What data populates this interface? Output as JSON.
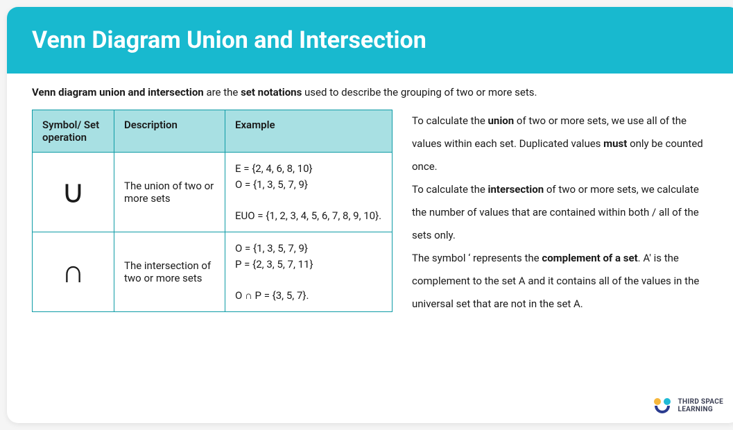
{
  "colors": {
    "header_bg": "#18b9cf",
    "table_border": "#0d9ba5",
    "th_bg": "#a8e0e3",
    "text": "#1a1a1a",
    "card_bg": "#ffffff"
  },
  "typography": {
    "title_fontsize": 34,
    "body_fontsize": 15,
    "symbol_fontsize": 46,
    "side_line_height": 2.2
  },
  "header": {
    "title": "Venn Diagram Union and Intersection"
  },
  "intro": {
    "prefix_bold": "Venn diagram union and intersection",
    "mid_plain": " are the ",
    "mid_bold": "set notations",
    "suffix_plain": " used to describe the grouping of two or more sets."
  },
  "table": {
    "columns": [
      "Symbol/ Set operation",
      "Description",
      "Example"
    ],
    "rows": [
      {
        "symbol": "∪",
        "description": "The union of two or more sets",
        "example": "E = {2, 4, 6, 8, 10}\nO = {1, 3, 5, 7, 9}\n\nEUO = {1, 2, 3, 4, 5, 6, 7, 8, 9, 10}."
      },
      {
        "symbol": "∩",
        "description": "The intersection of two or more sets",
        "example": "O = {1, 3, 5, 7, 9}\nP = {2, 3, 5, 7, 11}\n\nO ∩ P = {3, 5, 7}."
      }
    ]
  },
  "side": {
    "p1_a": "To calculate the ",
    "p1_bold1": "union",
    "p1_b": " of two or more sets, we use all of the values within each set. Duplicated values ",
    "p1_bold2": "must",
    "p1_c": " only be counted once.",
    "p2_a": "To calculate the ",
    "p2_bold": "intersection",
    "p2_b": " of two or more sets, we calculate the number of values that are contained within both / all of the sets only.",
    "p3_a": "The symbol ‘ represents the ",
    "p3_bold": "complement of a set",
    "p3_b": ". A' is the complement to the set A and it contains all of the values in the universal set that are not in the set A."
  },
  "logo": {
    "line1": "THIRD SPACE",
    "line2": "LEARNING"
  }
}
